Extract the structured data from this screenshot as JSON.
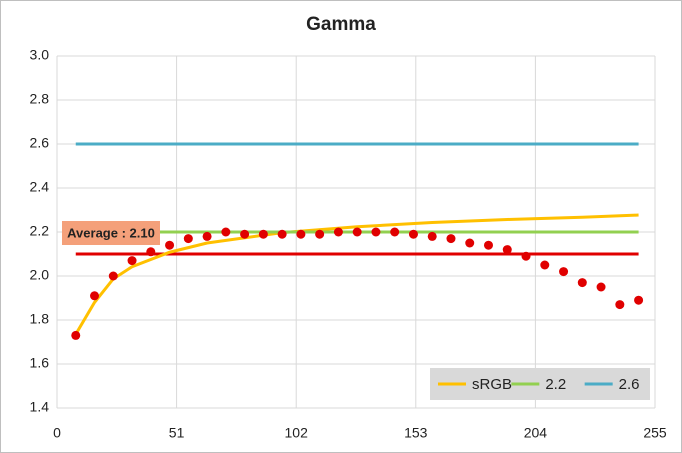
{
  "chart_data": {
    "type": "line",
    "title": "Gamma",
    "xlim": [
      0,
      255
    ],
    "xticks": [
      0,
      51,
      102,
      153,
      204,
      255
    ],
    "ylim": [
      1.4,
      3.0
    ],
    "yticks": [
      1.4,
      1.6,
      1.8,
      {
        "value": 2,
        "label": "2.0"
      },
      2.2,
      2.4,
      2.6,
      2.8,
      {
        "value": 3,
        "label": "3.0"
      }
    ],
    "grid": true,
    "legend": "bottom-right",
    "series": [
      {
        "name": "sRGB",
        "color": "#ffc000",
        "mark": "line",
        "x": [
          8,
          16,
          24,
          32,
          48,
          64,
          96,
          128,
          160,
          192,
          224,
          248
        ],
        "values": [
          1.735,
          1.88,
          1.987,
          2.042,
          2.108,
          2.15,
          2.197,
          2.224,
          2.243,
          2.257,
          2.267,
          2.277
        ]
      },
      {
        "name": "2.2",
        "color": "#92d050",
        "mark": "line",
        "x": [
          8,
          248
        ],
        "values": [
          2.2,
          2.2
        ]
      },
      {
        "name": "2.6",
        "color": "#4bacc6",
        "mark": "line",
        "x": [
          8,
          248
        ],
        "values": [
          2.6,
          2.6
        ]
      },
      {
        "color": "#e00000",
        "mark": "marker",
        "x": [
          8,
          16,
          24,
          32,
          40,
          48,
          56,
          64,
          72,
          80,
          88,
          96,
          104,
          112,
          120,
          128,
          136,
          144,
          152,
          160,
          168,
          176,
          184,
          192,
          200,
          208,
          216,
          224,
          232,
          240,
          248
        ],
        "values": [
          1.73,
          1.91,
          2.0,
          2.07,
          2.11,
          2.14,
          2.17,
          2.18,
          2.2,
          2.19,
          2.19,
          2.19,
          2.19,
          2.19,
          2.2,
          2.2,
          2.2,
          2.2,
          2.19,
          2.18,
          2.17,
          2.15,
          2.14,
          2.12,
          2.09,
          2.05,
          2.02,
          1.97,
          1.95,
          1.87,
          1.89
        ]
      }
    ],
    "average": {
      "label": "Average : 2.10",
      "value": 2.1,
      "color": "#e00000",
      "box_color": "#f4a07a",
      "x": [
        8,
        248
      ]
    }
  }
}
